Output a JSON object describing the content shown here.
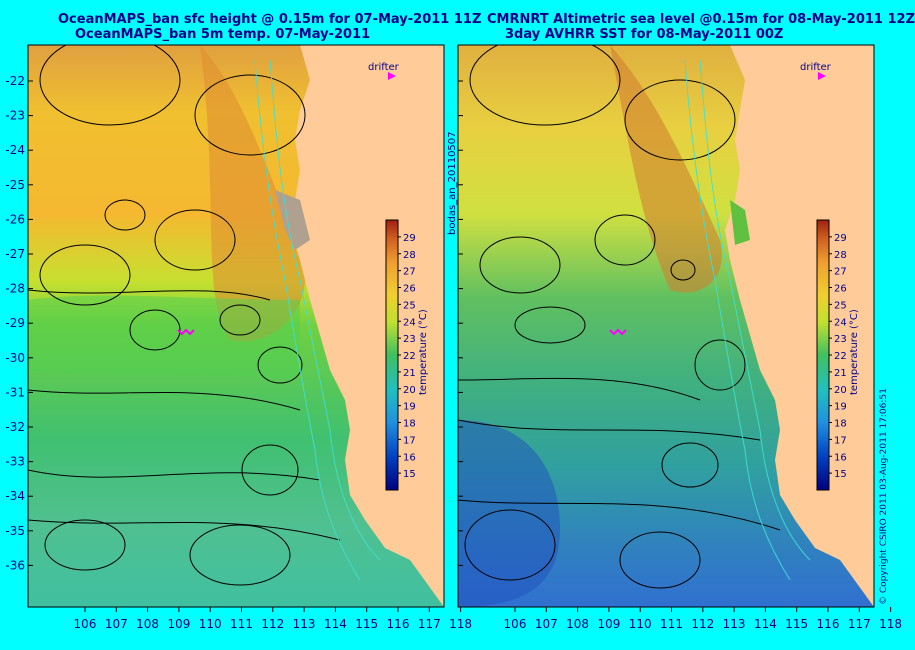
{
  "left_panel": {
    "title_line1": "OceanMAPS_ban sfc height @ 0.15m for 07-May-2011 11Z",
    "title_line2": "OceanMAPS_ban 5m temp. 07-May-2011",
    "side_label": "bodas_an_20110507"
  },
  "right_panel": {
    "title_line1": "CMRNRT Altimetric sea level  @0.15m  for 08-May-2011 12Z",
    "title_line2": "3day AVHRR SST for 08-May-2011 00Z"
  },
  "drifter_label": "drifter",
  "colorbar": {
    "label": "temperature (°C)",
    "ticks": [
      29,
      28,
      27,
      26,
      25,
      24,
      23,
      22,
      21,
      20,
      19,
      18,
      17,
      16,
      15
    ],
    "min": 14,
    "max": 30
  },
  "axes": {
    "lon_ticks": [
      106,
      107,
      108,
      109,
      110,
      111,
      112,
      113,
      114,
      115,
      116,
      117,
      118
    ],
    "lat_ticks": [
      -22,
      -23,
      -24,
      -25,
      -26,
      -27,
      -28,
      -29,
      -30,
      -31,
      -32,
      -33,
      -34,
      -35,
      -36
    ]
  },
  "copyright": "© Copyright CSIRO 2011   03-Aug-2011 17:06:51",
  "colors": {
    "background": "#00ffff",
    "land": "#ffcc99",
    "title": "#00008b",
    "drifter": "#ff00ff",
    "contour": "#000000",
    "bathymetry": "#40e0d0"
  }
}
